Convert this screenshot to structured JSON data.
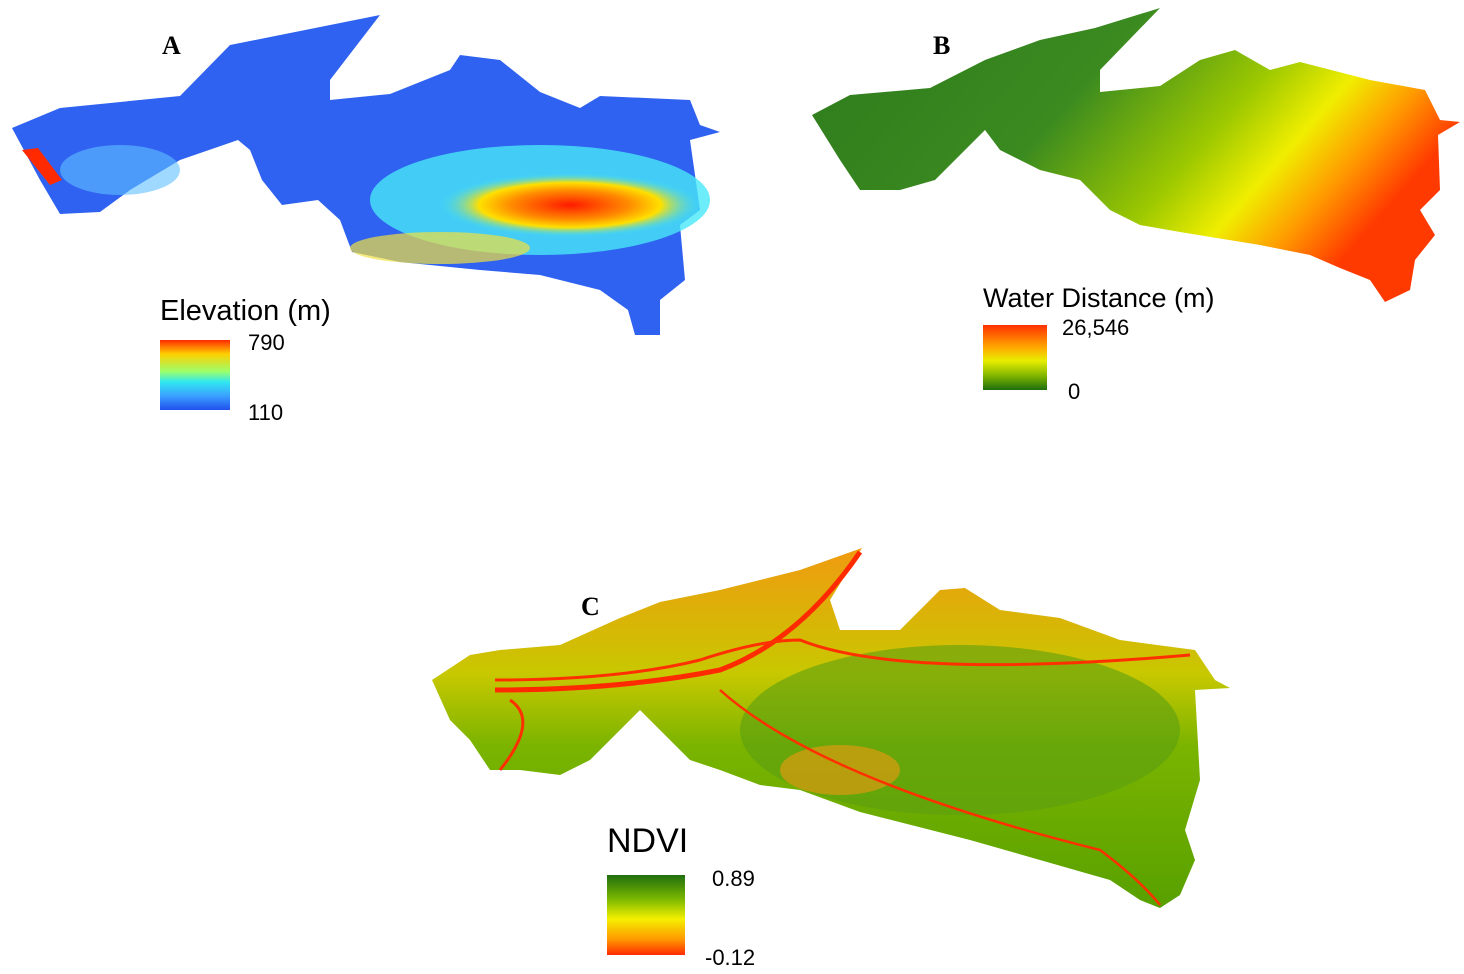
{
  "panels": [
    {
      "label": "A",
      "legend": {
        "title": "Elevation (m)",
        "max": "790",
        "min": "110"
      }
    },
    {
      "label": "B",
      "legend": {
        "title": "Water Distance (m)",
        "max": "26,546",
        "min": "0"
      }
    },
    {
      "label": "C",
      "legend": {
        "title": "NDVI",
        "max": "0.89",
        "min": "-0.12"
      }
    }
  ]
}
